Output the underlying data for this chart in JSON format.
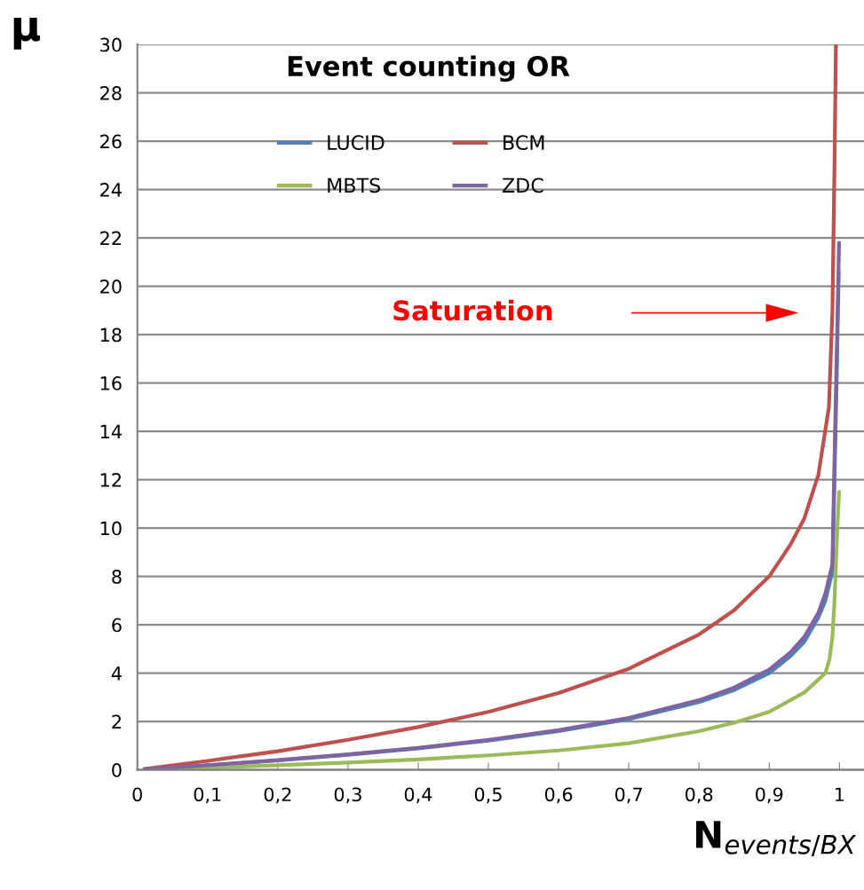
{
  "chart_data": {
    "type": "line",
    "title": "Event counting OR",
    "xlabel": "N$_{events/BX}$",
    "ylabel": "μ",
    "xlim": [
      0,
      1.035
    ],
    "ylim": [
      0,
      30
    ],
    "xticks": [
      0,
      {
        "value": 0.1,
        "label": "0,1"
      },
      {
        "value": 0.2,
        "label": "0,2"
      },
      {
        "value": 0.3,
        "label": "0,3"
      },
      {
        "value": 0.4,
        "label": "0,4"
      },
      {
        "value": 0.5,
        "label": "0,5"
      },
      {
        "value": 0.6,
        "label": "0,6"
      },
      {
        "value": 0.7,
        "label": "0,7"
      },
      {
        "value": 0.8,
        "label": "0,8"
      },
      {
        "value": 0.9,
        "label": "0,9"
      },
      1
    ],
    "yticks": [
      0,
      2,
      4,
      6,
      8,
      10,
      12,
      14,
      16,
      18,
      20,
      22,
      24,
      26,
      28,
      30
    ],
    "grid": "y",
    "legend": "top left",
    "marker": "none",
    "line_style": "solid",
    "annotations": [
      "Saturation"
    ],
    "series": [
      {
        "name": "LUCID",
        "color": "#4f81bd",
        "x": [
          0.01,
          0.1,
          0.2,
          0.3,
          0.4,
          0.5,
          0.6,
          0.7,
          0.8,
          0.85,
          0.9,
          0.93,
          0.95,
          0.97,
          0.98,
          0.99,
          0.993,
          0.996,
          0.999
        ],
        "values": [
          0.02,
          0.18,
          0.39,
          0.62,
          0.89,
          1.21,
          1.6,
          2.1,
          2.8,
          3.3,
          4.0,
          4.7,
          5.3,
          6.3,
          7.0,
          8.2,
          12,
          16,
          20.6
        ]
      },
      {
        "name": "BCM",
        "color": "#c0504d",
        "x": [
          0.01,
          0.1,
          0.2,
          0.3,
          0.4,
          0.5,
          0.6,
          0.7,
          0.8,
          0.85,
          0.9,
          0.93,
          0.95,
          0.97,
          0.985,
          0.99,
          0.993,
          0.995
        ],
        "values": [
          0.04,
          0.37,
          0.77,
          1.24,
          1.77,
          2.4,
          3.18,
          4.18,
          5.6,
          6.6,
          8.0,
          9.3,
          10.4,
          12.2,
          15.0,
          19,
          25,
          30
        ]
      },
      {
        "name": "MBTS",
        "color": "#9bbb59",
        "x": [
          0.01,
          0.1,
          0.2,
          0.3,
          0.4,
          0.5,
          0.6,
          0.7,
          0.8,
          0.85,
          0.9,
          0.95,
          0.98,
          0.986,
          0.99,
          0.993,
          0.997,
          0.9995
        ],
        "values": [
          0.01,
          0.09,
          0.19,
          0.3,
          0.43,
          0.6,
          0.8,
          1.1,
          1.6,
          1.95,
          2.4,
          3.2,
          4.0,
          4.6,
          5.5,
          7,
          10,
          11.5
        ]
      },
      {
        "name": "ZDC",
        "color": "#8064a2",
        "x": [
          0.01,
          0.1,
          0.2,
          0.3,
          0.4,
          0.5,
          0.6,
          0.7,
          0.8,
          0.85,
          0.9,
          0.93,
          0.95,
          0.97,
          0.98,
          0.99,
          0.993,
          0.996,
          0.9995
        ],
        "values": [
          0.02,
          0.19,
          0.4,
          0.64,
          0.91,
          1.24,
          1.64,
          2.15,
          2.88,
          3.4,
          4.15,
          4.85,
          5.5,
          6.5,
          7.3,
          8.5,
          13,
          17,
          21.8
        ]
      }
    ]
  }
}
